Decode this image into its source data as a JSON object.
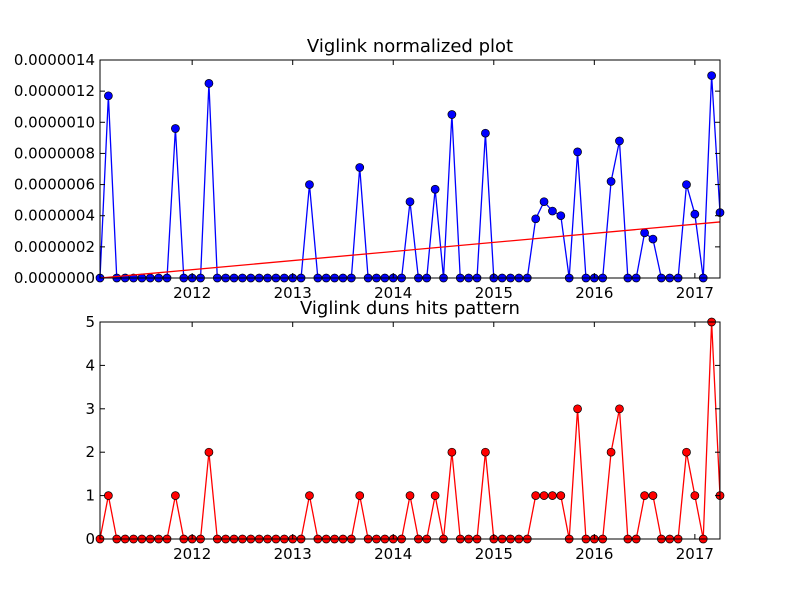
{
  "chart_data": [
    {
      "type": "line",
      "title": "Viglink normalized plot",
      "xlabel": "",
      "ylabel": "",
      "x_tick_labels": [
        "2012",
        "2013",
        "2014",
        "2015",
        "2016",
        "2017"
      ],
      "y_tick_labels": [
        "0.0000000",
        "0.0000002",
        "0.0000004",
        "0.0000006",
        "0.0000008",
        "0.0000010",
        "0.0000012",
        "0.0000014"
      ],
      "xlim": [
        "2011-02",
        "2017-04"
      ],
      "ylim": [
        0,
        1.4e-06
      ],
      "grid": false,
      "series": [
        {
          "color": "#0000ff",
          "marker": "circle",
          "points": [
            [
              "2011-02",
              0.0
            ],
            [
              "2011-03",
              1.17e-06
            ],
            [
              "2011-04",
              0.0
            ],
            [
              "2011-05",
              0.0
            ],
            [
              "2011-06",
              0.0
            ],
            [
              "2011-07",
              0.0
            ],
            [
              "2011-08",
              0.0
            ],
            [
              "2011-09",
              0.0
            ],
            [
              "2011-10",
              0.0
            ],
            [
              "2011-11",
              9.6e-07
            ],
            [
              "2011-12",
              0.0
            ],
            [
              "2012-01",
              0.0
            ],
            [
              "2012-02",
              0.0
            ],
            [
              "2012-03",
              1.25e-06
            ],
            [
              "2012-04",
              0.0
            ],
            [
              "2012-05",
              0.0
            ],
            [
              "2012-06",
              0.0
            ],
            [
              "2012-07",
              0.0
            ],
            [
              "2012-08",
              0.0
            ],
            [
              "2012-09",
              0.0
            ],
            [
              "2012-10",
              0.0
            ],
            [
              "2012-11",
              0.0
            ],
            [
              "2012-12",
              0.0
            ],
            [
              "2013-01",
              0.0
            ],
            [
              "2013-02",
              0.0
            ],
            [
              "2013-03",
              6e-07
            ],
            [
              "2013-04",
              0.0
            ],
            [
              "2013-05",
              0.0
            ],
            [
              "2013-06",
              0.0
            ],
            [
              "2013-07",
              0.0
            ],
            [
              "2013-08",
              0.0
            ],
            [
              "2013-09",
              7.1e-07
            ],
            [
              "2013-10",
              0.0
            ],
            [
              "2013-11",
              0.0
            ],
            [
              "2013-12",
              0.0
            ],
            [
              "2014-01",
              0.0
            ],
            [
              "2014-02",
              0.0
            ],
            [
              "2014-03",
              4.9e-07
            ],
            [
              "2014-04",
              0.0
            ],
            [
              "2014-05",
              0.0
            ],
            [
              "2014-06",
              5.7e-07
            ],
            [
              "2014-07",
              0.0
            ],
            [
              "2014-08",
              1.05e-06
            ],
            [
              "2014-09",
              0.0
            ],
            [
              "2014-10",
              0.0
            ],
            [
              "2014-11",
              0.0
            ],
            [
              "2014-12",
              9.3e-07
            ],
            [
              "2015-01",
              0.0
            ],
            [
              "2015-02",
              0.0
            ],
            [
              "2015-03",
              0.0
            ],
            [
              "2015-04",
              0.0
            ],
            [
              "2015-05",
              0.0
            ],
            [
              "2015-06",
              3.8e-07
            ],
            [
              "2015-07",
              4.9e-07
            ],
            [
              "2015-08",
              4.3e-07
            ],
            [
              "2015-09",
              4e-07
            ],
            [
              "2015-10",
              0.0
            ],
            [
              "2015-11",
              8.1e-07
            ],
            [
              "2015-12",
              0.0
            ],
            [
              "2016-01",
              0.0
            ],
            [
              "2016-02",
              0.0
            ],
            [
              "2016-03",
              6.2e-07
            ],
            [
              "2016-04",
              8.8e-07
            ],
            [
              "2016-05",
              0.0
            ],
            [
              "2016-06",
              0.0
            ],
            [
              "2016-07",
              2.9e-07
            ],
            [
              "2016-08",
              2.5e-07
            ],
            [
              "2016-09",
              0.0
            ],
            [
              "2016-10",
              0.0
            ],
            [
              "2016-11",
              0.0
            ],
            [
              "2016-12",
              6e-07
            ],
            [
              "2017-01",
              4.1e-07
            ],
            [
              "2017-02",
              0.0
            ],
            [
              "2017-03",
              1.3e-06
            ],
            [
              "2017-04",
              4.2e-07
            ]
          ]
        },
        {
          "color": "#ff0000",
          "marker": "none",
          "points": [
            [
              "2011-02",
              0.0
            ],
            [
              "2017-04",
              3.6e-07
            ]
          ]
        }
      ]
    },
    {
      "type": "line",
      "title": "Viglink duns hits pattern",
      "xlabel": "",
      "ylabel": "",
      "x_tick_labels": [
        "2012",
        "2013",
        "2014",
        "2015",
        "2016",
        "2017"
      ],
      "y_tick_labels": [
        "0",
        "1",
        "2",
        "3",
        "4",
        "5"
      ],
      "xlim": [
        "2011-02",
        "2017-04"
      ],
      "ylim": [
        0,
        5
      ],
      "grid": false,
      "series": [
        {
          "color": "#ff0000",
          "marker": "circle",
          "points": [
            [
              "2011-02",
              0
            ],
            [
              "2011-03",
              1
            ],
            [
              "2011-04",
              0
            ],
            [
              "2011-05",
              0
            ],
            [
              "2011-06",
              0
            ],
            [
              "2011-07",
              0
            ],
            [
              "2011-08",
              0
            ],
            [
              "2011-09",
              0
            ],
            [
              "2011-10",
              0
            ],
            [
              "2011-11",
              1
            ],
            [
              "2011-12",
              0
            ],
            [
              "2012-01",
              0
            ],
            [
              "2012-02",
              0
            ],
            [
              "2012-03",
              2
            ],
            [
              "2012-04",
              0
            ],
            [
              "2012-05",
              0
            ],
            [
              "2012-06",
              0
            ],
            [
              "2012-07",
              0
            ],
            [
              "2012-08",
              0
            ],
            [
              "2012-09",
              0
            ],
            [
              "2012-10",
              0
            ],
            [
              "2012-11",
              0
            ],
            [
              "2012-12",
              0
            ],
            [
              "2013-01",
              0
            ],
            [
              "2013-02",
              0
            ],
            [
              "2013-03",
              1
            ],
            [
              "2013-04",
              0
            ],
            [
              "2013-05",
              0
            ],
            [
              "2013-06",
              0
            ],
            [
              "2013-07",
              0
            ],
            [
              "2013-08",
              0
            ],
            [
              "2013-09",
              1
            ],
            [
              "2013-10",
              0
            ],
            [
              "2013-11",
              0
            ],
            [
              "2013-12",
              0
            ],
            [
              "2014-01",
              0
            ],
            [
              "2014-02",
              0
            ],
            [
              "2014-03",
              1
            ],
            [
              "2014-04",
              0
            ],
            [
              "2014-05",
              0
            ],
            [
              "2014-06",
              1
            ],
            [
              "2014-07",
              0
            ],
            [
              "2014-08",
              2
            ],
            [
              "2014-09",
              0
            ],
            [
              "2014-10",
              0
            ],
            [
              "2014-11",
              0
            ],
            [
              "2014-12",
              2
            ],
            [
              "2015-01",
              0
            ],
            [
              "2015-02",
              0
            ],
            [
              "2015-03",
              0
            ],
            [
              "2015-04",
              0
            ],
            [
              "2015-05",
              0
            ],
            [
              "2015-06",
              1
            ],
            [
              "2015-07",
              1
            ],
            [
              "2015-08",
              1
            ],
            [
              "2015-09",
              1
            ],
            [
              "2015-10",
              0
            ],
            [
              "2015-11",
              3
            ],
            [
              "2015-12",
              0
            ],
            [
              "2016-01",
              0
            ],
            [
              "2016-02",
              0
            ],
            [
              "2016-03",
              2
            ],
            [
              "2016-04",
              3
            ],
            [
              "2016-05",
              0
            ],
            [
              "2016-06",
              0
            ],
            [
              "2016-07",
              1
            ],
            [
              "2016-08",
              1
            ],
            [
              "2016-09",
              0
            ],
            [
              "2016-10",
              0
            ],
            [
              "2016-11",
              0
            ],
            [
              "2016-12",
              2
            ],
            [
              "2017-01",
              1
            ],
            [
              "2017-02",
              0
            ],
            [
              "2017-03",
              5
            ],
            [
              "2017-04",
              1
            ]
          ]
        }
      ]
    }
  ]
}
